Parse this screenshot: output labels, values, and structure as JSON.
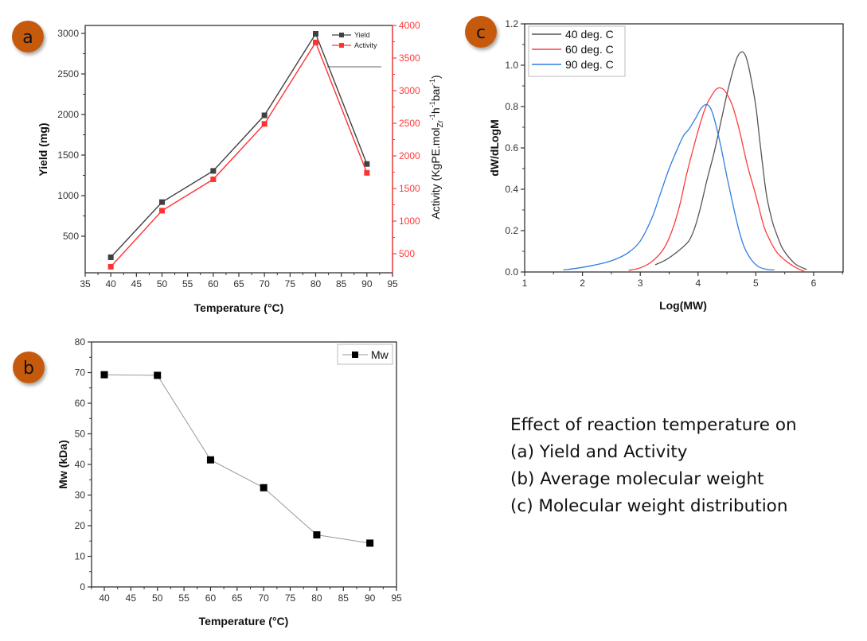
{
  "badges": {
    "a": "a",
    "b": "b",
    "c": "c",
    "color": "#c55a11"
  },
  "caption": {
    "lines": [
      "Effect of reaction temperature on",
      "(a) Yield and Activity",
      "(b) Average molecular weight",
      "(c) Molecular weight distribution"
    ]
  },
  "chart_data": [
    {
      "id": "a",
      "type": "line",
      "title": "",
      "xlabel": "Temperature (°C)",
      "ylabel": "Yield (mg)",
      "y2label": "Activity (KgPE.mol_Zr^-1 h^-1 bar^-1)",
      "xlim": [
        35,
        95
      ],
      "ylim": [
        90,
        3100
      ],
      "y2lim": [
        190,
        4000
      ],
      "xticks": [
        35,
        40,
        45,
        50,
        55,
        60,
        65,
        70,
        75,
        80,
        85,
        90,
        95
      ],
      "yticks": [
        500,
        1000,
        1500,
        2000,
        2500,
        3000
      ],
      "y2ticks": [
        500,
        1000,
        1500,
        2000,
        2500,
        3000,
        3500,
        4000
      ],
      "x": [
        40,
        50,
        60,
        70,
        80,
        90
      ],
      "series": [
        {
          "name": "Yield",
          "axis": "left",
          "color": "#404040",
          "values": [
            240,
            920,
            1305,
            1990,
            2995,
            1390
          ]
        },
        {
          "name": "Activity",
          "axis": "right",
          "color": "#ff3333",
          "values": [
            300,
            1160,
            1640,
            2490,
            3740,
            1740
          ]
        }
      ],
      "legend": "top-right",
      "grid": false
    },
    {
      "id": "b",
      "type": "line",
      "title": "",
      "xlabel": "Temperature (°C)",
      "ylabel": "Mw (kDa)",
      "xlim": [
        37.5,
        95
      ],
      "ylim": [
        0,
        80
      ],
      "xticks": [
        40,
        45,
        50,
        55,
        60,
        65,
        70,
        75,
        80,
        85,
        90,
        95
      ],
      "yticks": [
        0,
        10,
        20,
        30,
        40,
        50,
        60,
        70,
        80
      ],
      "x": [
        40,
        50,
        60,
        70,
        80,
        90
      ],
      "series": [
        {
          "name": "Mw",
          "color": "#000000",
          "line_color": "#999999",
          "values": [
            69.3,
            69.1,
            41.5,
            32.4,
            17.0,
            14.3
          ]
        }
      ],
      "legend": "top-right",
      "grid": false
    },
    {
      "id": "c",
      "type": "line",
      "title": "",
      "xlabel": "Log(MW)",
      "ylabel": "dW/dLogM",
      "xlim": [
        1,
        6.5
      ],
      "ylim": [
        0,
        1.2
      ],
      "xticks": [
        1,
        2,
        3,
        4,
        5,
        6
      ],
      "yticks": [
        0.0,
        0.2,
        0.4,
        0.6,
        0.8,
        1.0,
        1.2
      ],
      "series": [
        {
          "name": "40 deg. C",
          "color": "#555555",
          "points": [
            [
              3.26,
              0.035
            ],
            [
              3.45,
              0.06
            ],
            [
              3.65,
              0.1
            ],
            [
              3.84,
              0.15
            ],
            [
              3.95,
              0.22
            ],
            [
              4.05,
              0.32
            ],
            [
              4.15,
              0.44
            ],
            [
              4.28,
              0.58
            ],
            [
              4.39,
              0.72
            ],
            [
              4.5,
              0.86
            ],
            [
              4.6,
              0.97
            ],
            [
              4.68,
              1.04
            ],
            [
              4.76,
              1.065
            ],
            [
              4.83,
              1.04
            ],
            [
              4.9,
              0.96
            ],
            [
              5.0,
              0.8
            ],
            [
              5.07,
              0.63
            ],
            [
              5.18,
              0.38
            ],
            [
              5.28,
              0.25
            ],
            [
              5.35,
              0.19
            ],
            [
              5.45,
              0.12
            ],
            [
              5.56,
              0.075
            ],
            [
              5.7,
              0.035
            ],
            [
              5.88,
              0.012
            ]
          ]
        },
        {
          "name": "60 deg. C",
          "color": "#ff3b3b",
          "points": [
            [
              2.8,
              0.008
            ],
            [
              3.0,
              0.02
            ],
            [
              3.2,
              0.05
            ],
            [
              3.4,
              0.11
            ],
            [
              3.55,
              0.2
            ],
            [
              3.68,
              0.32
            ],
            [
              3.8,
              0.47
            ],
            [
              3.92,
              0.6
            ],
            [
              4.05,
              0.73
            ],
            [
              4.15,
              0.81
            ],
            [
              4.25,
              0.86
            ],
            [
              4.32,
              0.885
            ],
            [
              4.39,
              0.89
            ],
            [
              4.48,
              0.87
            ],
            [
              4.6,
              0.8
            ],
            [
              4.72,
              0.68
            ],
            [
              4.85,
              0.52
            ],
            [
              5.0,
              0.37
            ],
            [
              5.14,
              0.22
            ],
            [
              5.25,
              0.15
            ],
            [
              5.35,
              0.1
            ],
            [
              5.45,
              0.07
            ],
            [
              5.56,
              0.045
            ],
            [
              5.7,
              0.02
            ],
            [
              5.86,
              0.0
            ]
          ]
        },
        {
          "name": "90 deg. C",
          "color": "#2f7fe0",
          "points": [
            [
              1.67,
              0.01
            ],
            [
              1.9,
              0.018
            ],
            [
              2.15,
              0.03
            ],
            [
              2.39,
              0.045
            ],
            [
              2.6,
              0.065
            ],
            [
              2.8,
              0.095
            ],
            [
              3.0,
              0.15
            ],
            [
              3.2,
              0.26
            ],
            [
              3.35,
              0.38
            ],
            [
              3.5,
              0.5
            ],
            [
              3.65,
              0.6
            ],
            [
              3.75,
              0.66
            ],
            [
              3.84,
              0.69
            ],
            [
              3.95,
              0.74
            ],
            [
              4.05,
              0.79
            ],
            [
              4.14,
              0.81
            ],
            [
              4.22,
              0.79
            ],
            [
              4.3,
              0.72
            ],
            [
              4.4,
              0.6
            ],
            [
              4.5,
              0.46
            ],
            [
              4.6,
              0.33
            ],
            [
              4.7,
              0.21
            ],
            [
              4.8,
              0.12
            ],
            [
              4.92,
              0.06
            ],
            [
              5.05,
              0.025
            ],
            [
              5.2,
              0.012
            ],
            [
              5.32,
              0.01
            ]
          ]
        }
      ],
      "legend": "top-left",
      "grid": false
    }
  ]
}
